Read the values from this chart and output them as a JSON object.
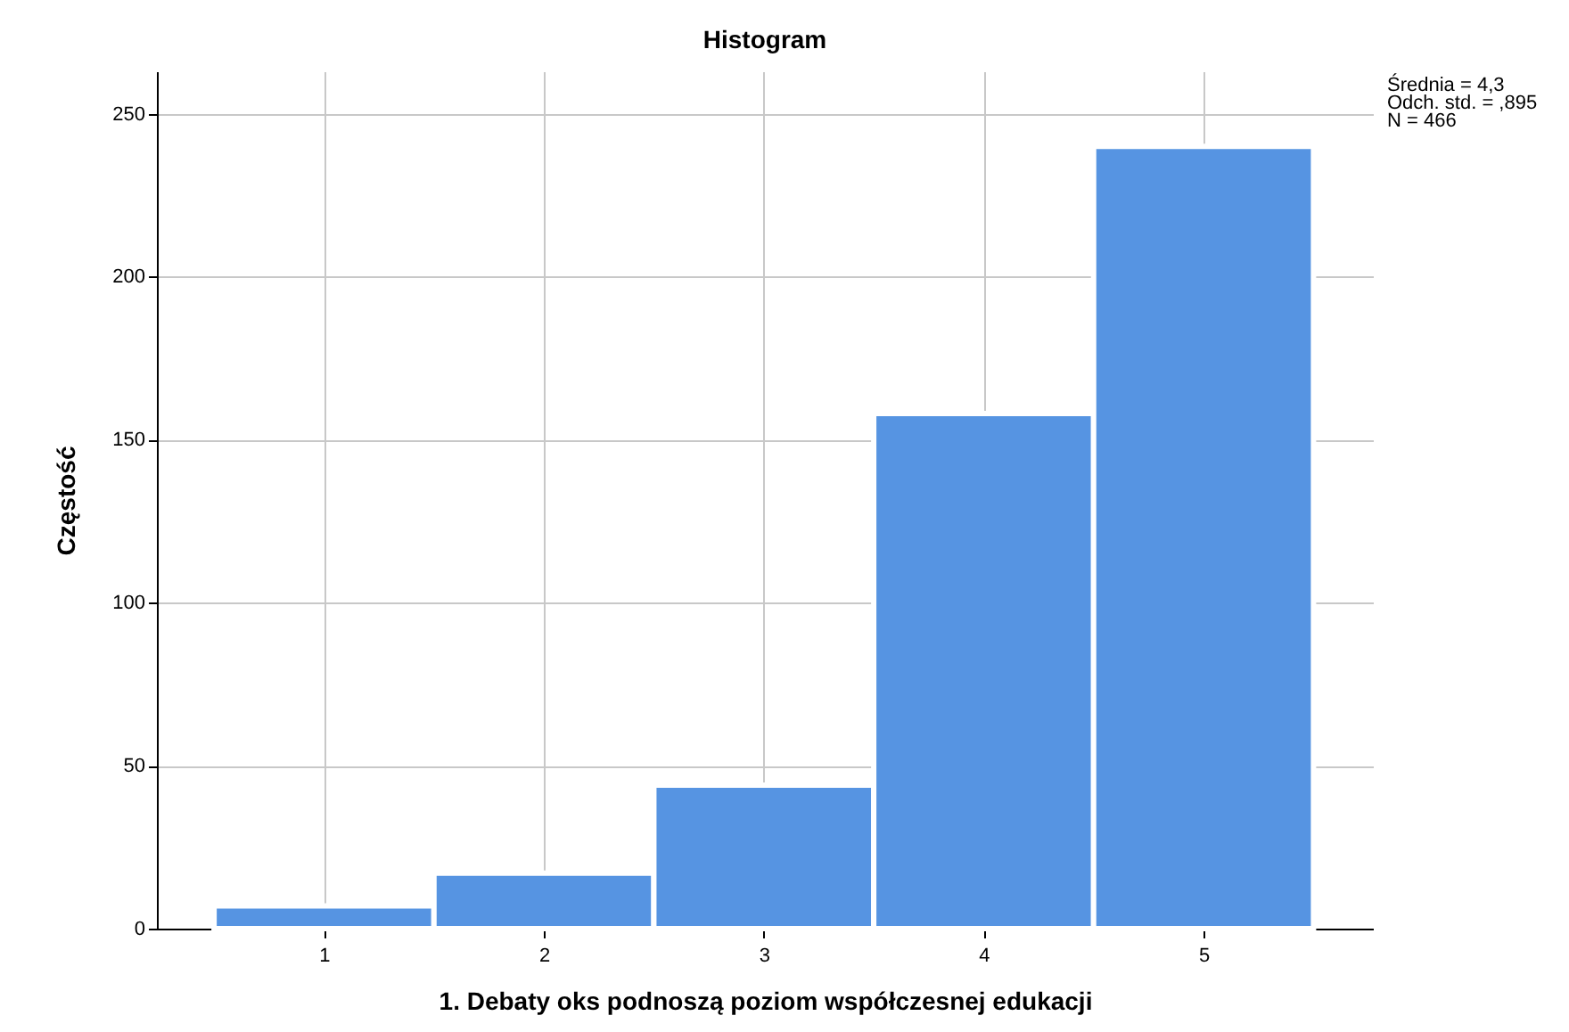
{
  "chart_data": {
    "type": "histogram",
    "title": "Histogram",
    "xlabel": "1. Debaty oks podnoszą poziom współczesnej edukacji",
    "ylabel": "Częstość",
    "bins": [
      0.5,
      1.5,
      2.5,
      3.5,
      4.5,
      5.5
    ],
    "values": [
      7,
      17,
      44,
      158,
      240
    ],
    "color": "#5694e2",
    "xlim": [
      0.24,
      5.77
    ],
    "xticks": [
      1,
      2,
      3,
      4,
      5
    ],
    "ylim": [
      0,
      263
    ],
    "yticks": [
      0,
      50,
      100,
      150,
      200,
      250
    ],
    "grid": true,
    "annotations": [
      "Średnia = 4,3",
      "Odch. std. = ,895",
      "N = 466"
    ]
  }
}
